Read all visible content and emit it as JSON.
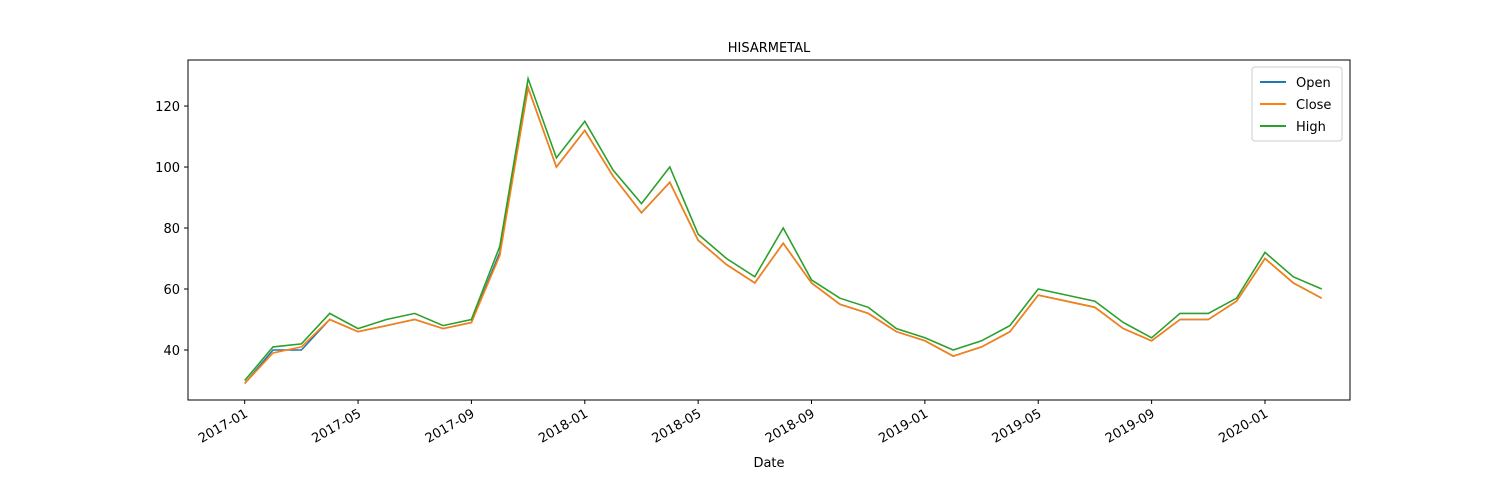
{
  "chart_data": {
    "type": "line",
    "title": "HISARMETAL",
    "x_label": "Date",
    "x": [
      "2017-01",
      "2017-02",
      "2017-03",
      "2017-04",
      "2017-05",
      "2017-06",
      "2017-07",
      "2017-08",
      "2017-09",
      "2017-10",
      "2017-11",
      "2017-12",
      "2018-01",
      "2018-02",
      "2018-03",
      "2018-04",
      "2018-05",
      "2018-06",
      "2018-07",
      "2018-08",
      "2018-09",
      "2018-10",
      "2018-11",
      "2018-12",
      "2019-01",
      "2019-02",
      "2019-03",
      "2019-04",
      "2019-05",
      "2019-06",
      "2019-07",
      "2019-08",
      "2019-09",
      "2019-10",
      "2019-11",
      "2019-12",
      "2020-01",
      "2020-02",
      "2020-03"
    ],
    "series": [
      {
        "name": "Open",
        "color": "#1f77b4",
        "values": [
          29,
          40,
          40,
          50,
          46,
          48,
          50,
          47,
          49,
          72,
          126,
          100,
          112,
          97,
          85,
          95,
          76,
          68,
          62,
          75,
          62,
          55,
          52,
          46,
          43,
          38,
          41,
          46,
          58,
          56,
          54,
          47,
          43,
          50,
          50,
          56,
          70,
          62,
          57
        ]
      },
      {
        "name": "Close",
        "color": "#ff7f0e",
        "values": [
          29,
          39,
          41,
          50,
          46,
          48,
          50,
          47,
          49,
          71,
          126,
          100,
          112,
          97,
          85,
          95,
          76,
          68,
          62,
          75,
          62,
          55,
          52,
          46,
          43,
          38,
          41,
          46,
          58,
          56,
          54,
          47,
          43,
          50,
          50,
          56,
          70,
          62,
          57
        ]
      },
      {
        "name": "High",
        "color": "#2ca02c",
        "values": [
          30,
          41,
          42,
          52,
          47,
          50,
          52,
          48,
          50,
          74,
          129,
          103,
          115,
          99,
          88,
          100,
          78,
          70,
          64,
          80,
          63,
          57,
          54,
          47,
          44,
          40,
          43,
          48,
          60,
          58,
          56,
          49,
          44,
          52,
          52,
          57,
          72,
          64,
          60
        ]
      }
    ],
    "xlim": [
      "2016-11",
      "2020-04"
    ],
    "xticks": [
      "2017-01",
      "2017-05",
      "2017-09",
      "2018-01",
      "2018-05",
      "2018-09",
      "2019-01",
      "2019-05",
      "2019-09",
      "2020-01"
    ],
    "ylim": [
      23.6,
      135.1
    ],
    "yticks": [
      40,
      60,
      80,
      100,
      120
    ],
    "grid": false,
    "legend": "upper right"
  }
}
